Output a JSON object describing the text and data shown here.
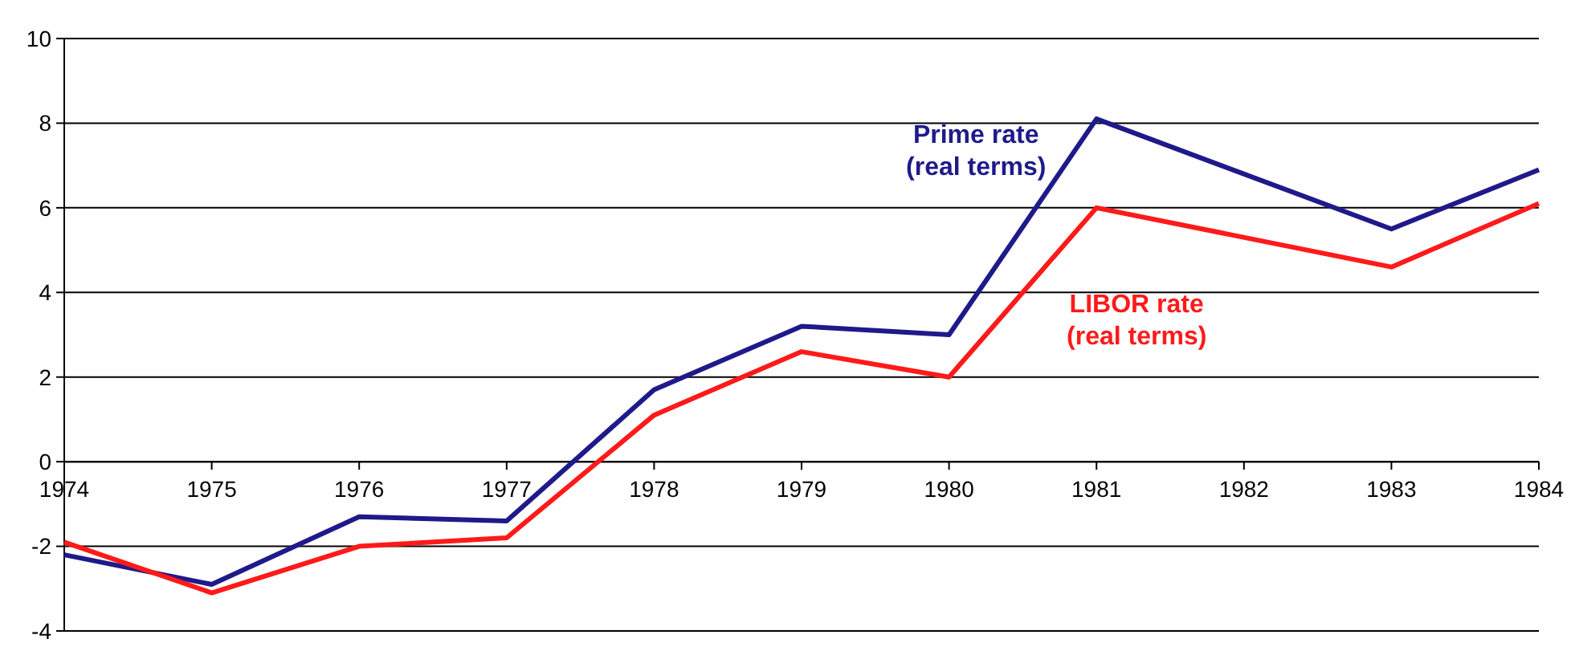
{
  "chart_data": {
    "type": "line",
    "x": [
      1974,
      1975,
      1976,
      1977,
      1978,
      1979,
      1980,
      1981,
      1983,
      1984
    ],
    "series": [
      {
        "name": "Prime rate\n(real terms)",
        "color": "#1f1a8a",
        "values": [
          -2.2,
          -2.9,
          -1.3,
          -1.4,
          1.7,
          3.2,
          3.0,
          8.1,
          5.5,
          6.9
        ]
      },
      {
        "name": "LIBOR rate\n(real terms)",
        "color": "#ff1a1a",
        "values": [
          -1.9,
          -3.1,
          -2.0,
          -1.8,
          1.1,
          2.6,
          2.0,
          6.0,
          4.6,
          6.1
        ]
      }
    ],
    "xlim": [
      1974,
      1984
    ],
    "xticks": [
      1974,
      1975,
      1976,
      1977,
      1978,
      1979,
      1980,
      1981,
      1982,
      1983,
      1984
    ],
    "ylim": [
      -4,
      10
    ],
    "yticks": [
      -4,
      -2,
      0,
      2,
      4,
      6,
      8,
      10
    ],
    "grid": "y"
  }
}
